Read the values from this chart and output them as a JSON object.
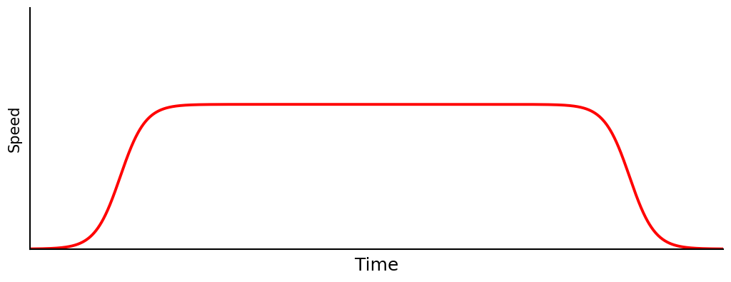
{
  "title": "",
  "xlabel": "Time",
  "ylabel": "Speed",
  "line_color": "#ff0000",
  "line_width": 2.8,
  "background_color": "#ffffff",
  "xlim": [
    0,
    1
  ],
  "ylim": [
    0,
    1
  ],
  "xlabel_fontsize": 18,
  "ylabel_fontsize": 15,
  "accel_mid": 0.13,
  "accel_k": 55,
  "decel_mid": 0.865,
  "decel_k": 55,
  "max_speed": 0.6,
  "figsize": [
    10.24,
    3.95
  ],
  "dpi": 100
}
